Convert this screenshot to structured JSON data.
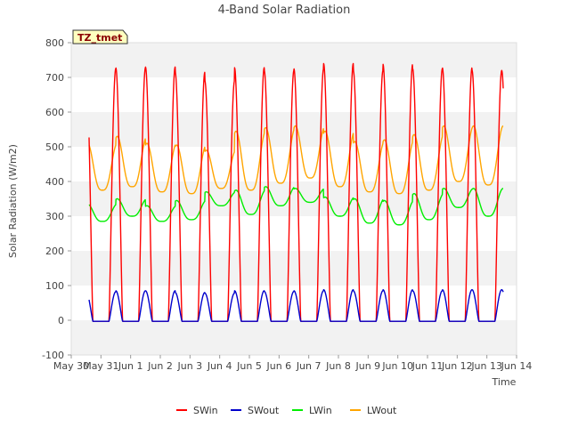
{
  "chart_data": {
    "type": "line",
    "title": "4-Band Solar Radiation",
    "xlabel": "Time",
    "ylabel": "Solar Radiation (W/m2)",
    "site_label": "TZ_tmet",
    "ylim": [
      -100,
      800
    ],
    "xlim": [
      0,
      15
    ],
    "y_ticks": [
      -100,
      0,
      100,
      200,
      300,
      400,
      500,
      600,
      700,
      800
    ],
    "x_ticks": [
      {
        "value": 0,
        "label": "May 30"
      },
      {
        "value": 1,
        "label": "May 31"
      },
      {
        "value": 2,
        "label": "Jun 1"
      },
      {
        "value": 3,
        "label": "Jun 2"
      },
      {
        "value": 4,
        "label": "Jun 3"
      },
      {
        "value": 5,
        "label": "Jun 4"
      },
      {
        "value": 6,
        "label": "Jun 5"
      },
      {
        "value": 7,
        "label": "Jun 6"
      },
      {
        "value": 8,
        "label": "Jun 7"
      },
      {
        "value": 9,
        "label": "Jun 8"
      },
      {
        "value": 10,
        "label": "Jun 9"
      },
      {
        "value": 11,
        "label": "Jun 10"
      },
      {
        "value": 12,
        "label": "Jun 11"
      },
      {
        "value": 13,
        "label": "Jun 12"
      },
      {
        "value": 14,
        "label": "Jun 13"
      },
      {
        "value": 15,
        "label": "Jun 14"
      }
    ],
    "grid": "horizontal bands",
    "legend_position": "bottom",
    "data_start": 0.6,
    "data_end": 14.55,
    "series": [
      {
        "name": "SWin",
        "color": "#ff0000",
        "daily_peaks": [
          725,
          728,
          730,
          715,
          690,
          728,
          720,
          725,
          740,
          720,
          738,
          725,
          728,
          720
        ],
        "night_value": -3
      },
      {
        "name": "SWout",
        "color": "#0000cc",
        "daily_peaks": [
          82,
          85,
          85,
          80,
          78,
          85,
          83,
          85,
          88,
          85,
          88,
          85,
          88,
          88
        ],
        "night_value": -3
      },
      {
        "name": "LWin",
        "color": "#00ee00",
        "daily_peaks": [
          335,
          350,
          330,
          345,
          370,
          375,
          385,
          380,
          355,
          350,
          345,
          365,
          380,
          380
        ],
        "daily_lows": [
          285,
          300,
          285,
          290,
          330,
          305,
          330,
          340,
          300,
          280,
          275,
          290,
          325,
          300
        ]
      },
      {
        "name": "LWout",
        "color": "#ffa500",
        "daily_peaks": [
          510,
          530,
          510,
          505,
          490,
          545,
          555,
          560,
          545,
          515,
          520,
          535,
          560,
          560
        ],
        "daily_lows": [
          375,
          385,
          370,
          365,
          380,
          375,
          395,
          410,
          385,
          370,
          365,
          375,
          400,
          390
        ]
      }
    ]
  }
}
